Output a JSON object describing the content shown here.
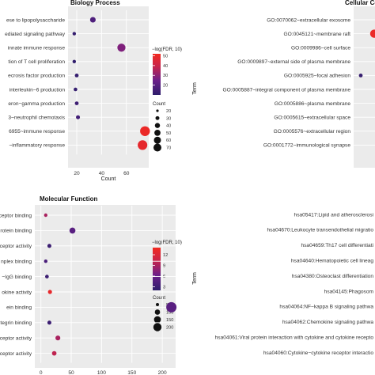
{
  "chart_data": [
    {
      "type": "scatter",
      "title": "Biology Process",
      "xlabel": "Count",
      "ylabel": "",
      "x_ticks": [
        "20",
        "40",
        "60"
      ],
      "xlim": [
        13,
        78
      ],
      "categories": [
        "ese to lipopolysaccharide",
        "ediated signaling pathway",
        "innate immune response",
        "tion of T cell proliferation",
        "ecrosis factor production",
        "interleukin−6 production",
        "eron−gamma production",
        "3~neutrophil chemotaxis",
        "6955~immune response",
        "~inflammatory response"
      ],
      "count": [
        33,
        18,
        56,
        18,
        20,
        19,
        20,
        21,
        75,
        73
      ],
      "neg_log_fdr": [
        18,
        12,
        28,
        11,
        12,
        12,
        14,
        15,
        50,
        48
      ],
      "color_legend": {
        "title": "−log(FDR, 10)",
        "ticks": [
          "50",
          "40",
          "30",
          "20"
        ],
        "range": [
          10,
          52
        ]
      },
      "size_legend": {
        "title": "Count",
        "labels": [
          "20",
          "30",
          "40",
          "50",
          "60",
          "70"
        ],
        "values": [
          20,
          30,
          40,
          50,
          60,
          70
        ]
      }
    },
    {
      "type": "scatter",
      "title": "Cellular Co",
      "xlabel": "",
      "ylabel": "Term",
      "categories": [
        "GO:0070062~extracellular exosome",
        "GO:0045121~membrane raft",
        "GO:0009986~cell surface",
        "GO:0009897~external side of plasma membrane",
        "GO:0005925~focal adhesion",
        "GO:0005887~integral component of plasma membrane",
        "GO:0005886~plasma membrane",
        "GO:0005615~extracellular space",
        "GO:0005576~extracellular region",
        "GO:0001772~immunological synapse"
      ]
    },
    {
      "type": "scatter",
      "title": "Molecular Function",
      "xlabel": "",
      "ylabel": "",
      "x_ticks": [
        "0",
        "50",
        "100",
        "150",
        "200"
      ],
      "xlim": [
        -10,
        222
      ],
      "categories": [
        "ceptor binding",
        "rotein binding",
        "eceptor activity",
        "nplex binding",
        "−IgG binding",
        "okine activity",
        "ein binding",
        "tegrin binding",
        "ceptor activity",
        "ceptor activity"
      ],
      "count": [
        8,
        52,
        14,
        8,
        10,
        15,
        215,
        14,
        28,
        22
      ],
      "neg_log_fdr": [
        9,
        5,
        3,
        4,
        3,
        13,
        5,
        3,
        9,
        10
      ],
      "color_legend": {
        "title": "−log(FDR, 10)",
        "ticks": [
          "12",
          "9",
          "6",
          "3"
        ],
        "range": [
          2,
          14
        ]
      },
      "size_legend": {
        "title": "Count",
        "labels": [
          "50",
          "100",
          "150",
          "200"
        ],
        "values": [
          50,
          100,
          150,
          200
        ]
      }
    },
    {
      "type": "scatter",
      "title": "",
      "xlabel": "",
      "ylabel": "Term",
      "categories": [
        "hsa05417:Lipid and atherosclerosi",
        "hsa04670:Leukocyte transendothelial migratio",
        "hsa04659:Th17 cell differentiati",
        "hsa04640:Hematopoietic cell lineag",
        "hsa04380:Osteoclast differentiation",
        "hsa04145:Phagosom",
        "hsa04064:NF−kappa B signaling pathwa",
        "hsa04062:Chemokine signaling pathwa",
        "hsa04061:Viral protein interaction with cytokine and cytokine recepto",
        "hsa04060:Cytokine−cytokine receptor interactio"
      ]
    }
  ]
}
